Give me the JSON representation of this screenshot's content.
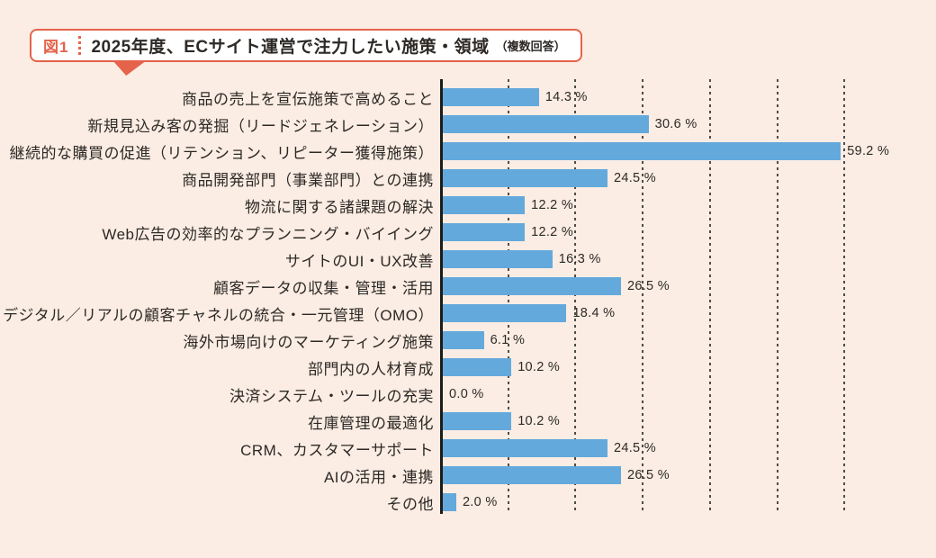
{
  "page": {
    "background_color": "#FBEDE3"
  },
  "header": {
    "figure_tag": "図1",
    "title": "2025年度、ECサイト運営で注力したい施策・領域",
    "note": "（複数回答）",
    "accent_color": "#E5634B"
  },
  "chart_data": {
    "type": "bar",
    "orientation": "horizontal",
    "title": "2025年度、ECサイト運営で注力したい施策・領域（複数回答）",
    "unit": "%",
    "categories": [
      "商品の売上を宣伝施策で高めること",
      "新規見込み客の発掘（リードジェネレーション）",
      "継続的な購買の促進（リテンション、リピーター獲得施策）",
      "商品開発部門（事業部門）との連携",
      "物流に関する諸課題の解決",
      "Web広告の効率的なプランニング・バイイング",
      "サイトのUI・UX改善",
      "顧客データの収集・管理・活用",
      "デジタル／リアルの顧客チャネルの統合・一元管理（OMO）",
      "海外市場向けのマーケティング施策",
      "部門内の人材育成",
      "決済システム・ツールの充実",
      "在庫管理の最適化",
      "CRM、カスタマーサポート",
      "AIの活用・連携",
      "その他"
    ],
    "values": [
      14.3,
      30.6,
      59.2,
      24.5,
      12.2,
      12.2,
      16.3,
      26.5,
      18.4,
      6.1,
      10.2,
      0.0,
      10.2,
      24.5,
      26.5,
      2.0
    ],
    "value_labels": [
      "14.3 %",
      "30.6 %",
      "59.2 %",
      "24.5 %",
      "12.2 %",
      "12.2 %",
      "16.3 %",
      "26.5 %",
      "18.4 %",
      "6.1 %",
      "10.2 %",
      "0.0 %",
      "10.2 %",
      "24.5 %",
      "26.5 %",
      "2.0 %"
    ],
    "xlim": [
      0,
      69
    ],
    "gridline_ticks": [
      10,
      20,
      30,
      40,
      50,
      60
    ],
    "grid_style": "dashed-vertical",
    "bar_color": "#64A9DC",
    "axis_color": "#1E1C1A",
    "gridline_color": "#4F4B48",
    "legend": "none"
  }
}
